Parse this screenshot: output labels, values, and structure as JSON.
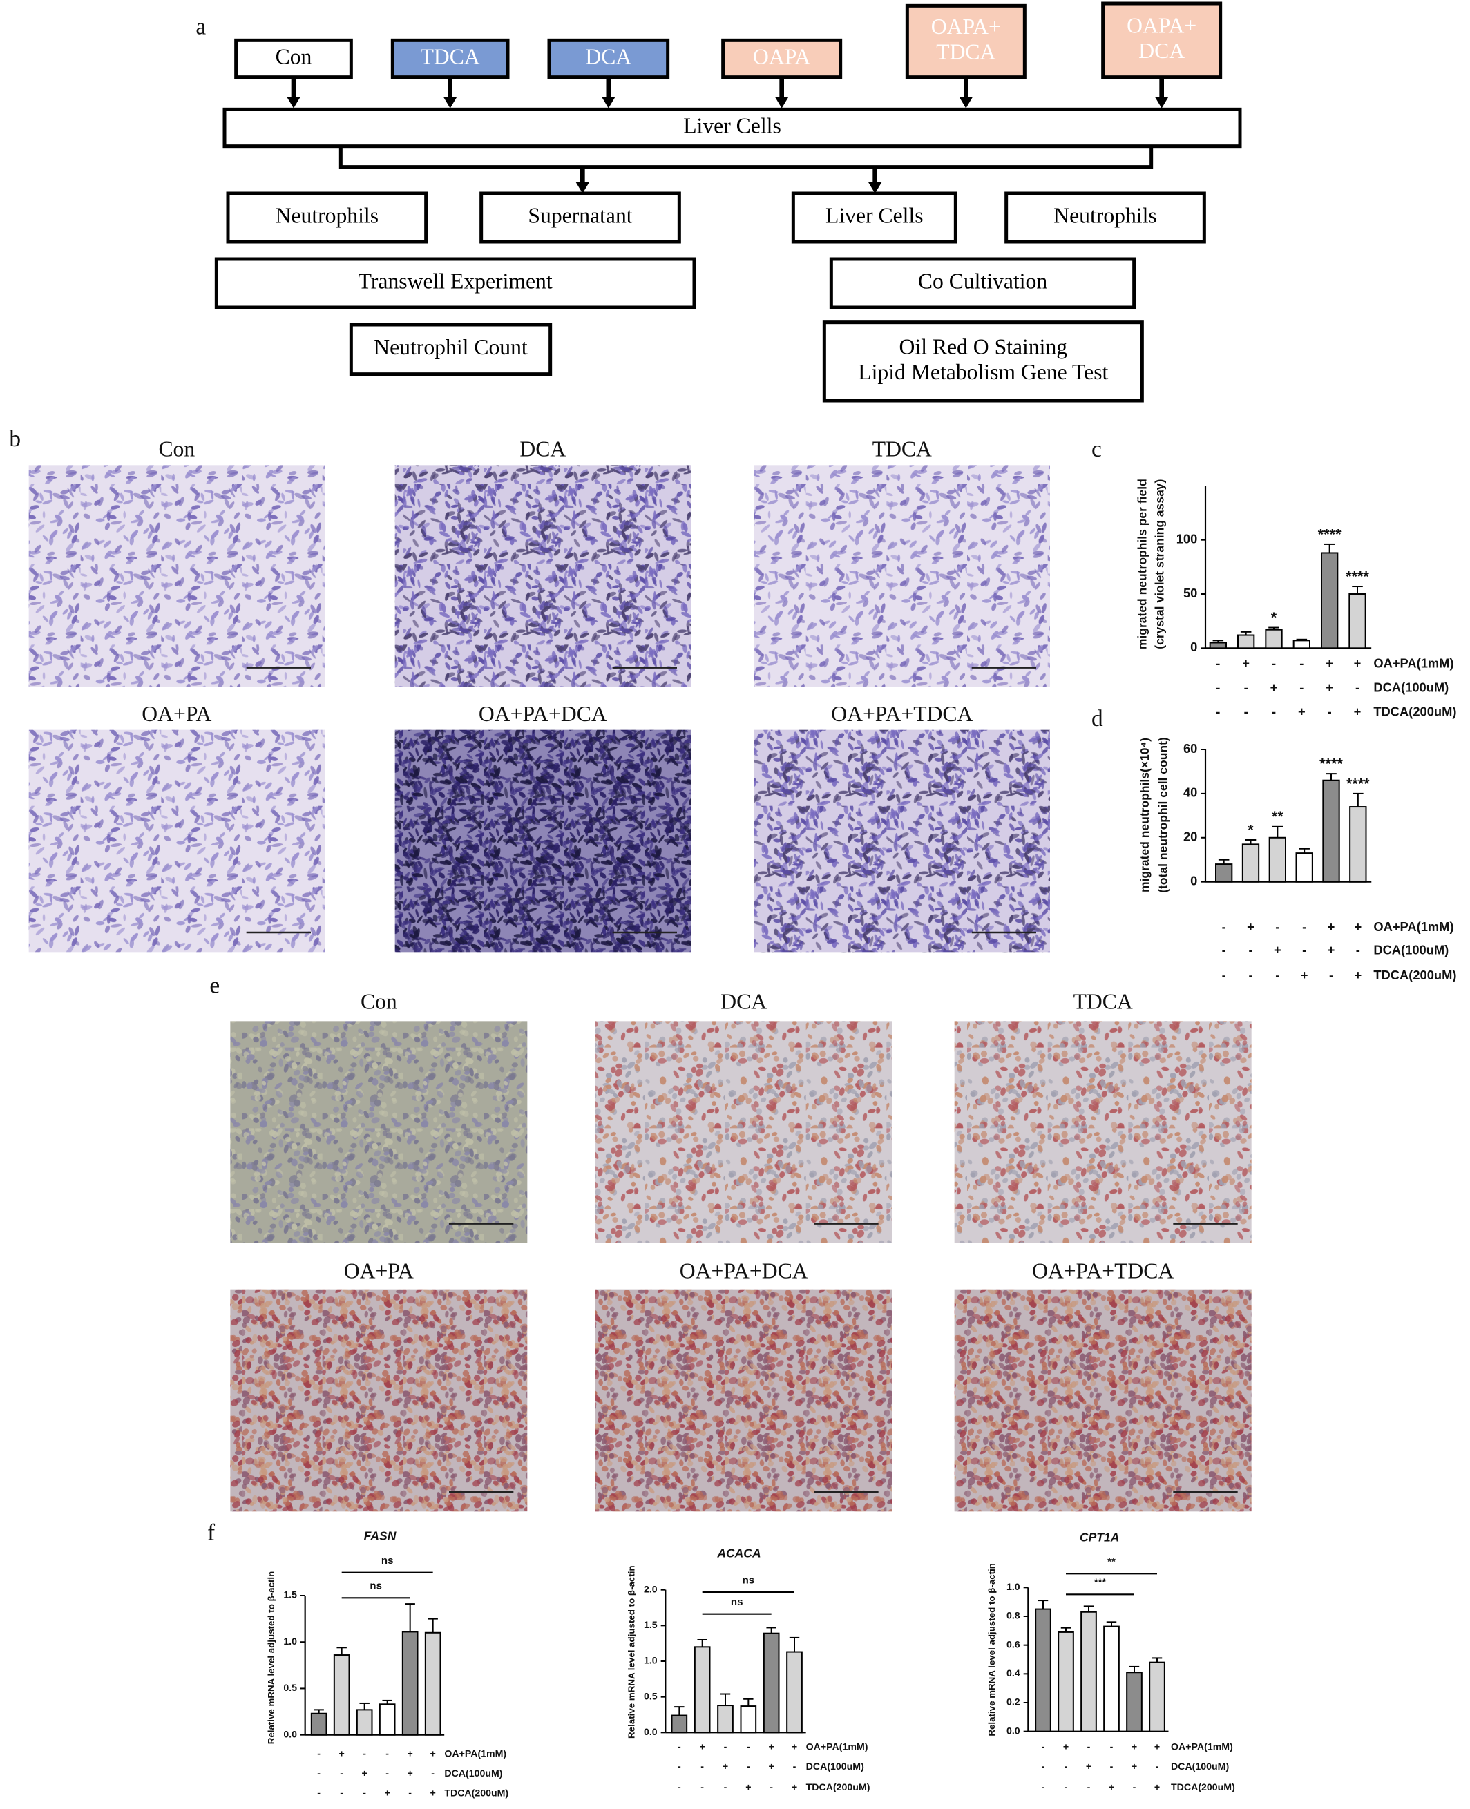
{
  "panel_labels": [
    "a",
    "b",
    "c",
    "d",
    "e",
    "f"
  ],
  "flowchart": {
    "treatments": [
      [
        "Con"
      ],
      [
        "TDCA"
      ],
      [
        "DCA"
      ],
      [
        "OAPA"
      ],
      [
        "OAPA+",
        "TDCA"
      ],
      [
        "OAPA+",
        "DCA"
      ]
    ],
    "liver_cells": "Liver Cells",
    "branches": [
      "Neutrophils",
      "Supernatant",
      "Liver Cells",
      "Neutrophils"
    ],
    "experiments": [
      "Transwell Experiment",
      "Co Cultivation"
    ],
    "readouts": [
      [
        "Neutrophil Count"
      ],
      [
        "Oil Red O Staining",
        "Lipid Metabolism Gene Test"
      ]
    ]
  },
  "images_b": [
    "Con",
    "DCA",
    "TDCA",
    "OA+PA",
    "OA+PA+DCA",
    "OA+PA+TDCA"
  ],
  "images_e": [
    "Con",
    "DCA",
    "TDCA",
    "OA+PA",
    "OA+PA+DCA",
    "OA+PA+TDCA"
  ],
  "chart_data": [
    {
      "type": "bar",
      "y_label": [
        "migrated neutrophils per field",
        "(crystal violet straning assay)"
      ],
      "values": [
        5,
        12,
        17,
        7,
        88,
        50
      ],
      "errors": [
        2,
        3,
        2,
        1,
        8,
        7
      ],
      "annotations": [
        null,
        null,
        "*",
        null,
        "****",
        "****"
      ],
      "colors": [
        "#8c8c8c",
        "#d4d4d4",
        "#d4d4d4",
        "#ffffff",
        "#8c8c8c",
        "#d4d4d4"
      ],
      "ylim": [
        0,
        150
      ],
      "yticks": [
        0,
        50,
        100
      ],
      "conditions": [
        {
          "name": "OA+PA(1mM)",
          "signs": [
            "-",
            "+",
            "-",
            "-",
            "+",
            "+"
          ]
        },
        {
          "name": "DCA(100uM)",
          "signs": [
            "-",
            "-",
            "+",
            "-",
            "+",
            "-"
          ]
        },
        {
          "name": "TDCA(200uM)",
          "signs": [
            "-",
            "-",
            "-",
            "+",
            "-",
            "+"
          ]
        }
      ]
    },
    {
      "type": "bar",
      "y_label": [
        "migrated neutrophils(×10⁴)",
        "(total neutrophil cell count)"
      ],
      "values": [
        8,
        17,
        20,
        13,
        46,
        34
      ],
      "errors": [
        2,
        2,
        5,
        2,
        3,
        6
      ],
      "annotations": [
        null,
        "*",
        "**",
        null,
        "****",
        "****"
      ],
      "colors": [
        "#8c8c8c",
        "#d4d4d4",
        "#d4d4d4",
        "#ffffff",
        "#8c8c8c",
        "#d4d4d4"
      ],
      "ylim": [
        0,
        60
      ],
      "yticks": [
        0,
        20,
        40,
        60
      ],
      "conditions": [
        {
          "name": "OA+PA(1mM)",
          "signs": [
            "-",
            "+",
            "-",
            "-",
            "+",
            "+"
          ]
        },
        {
          "name": "DCA(100uM)",
          "signs": [
            "-",
            "-",
            "+",
            "-",
            "+",
            "-"
          ]
        },
        {
          "name": "TDCA(200uM)",
          "signs": [
            "-",
            "-",
            "-",
            "+",
            "-",
            "+"
          ]
        }
      ]
    },
    {
      "type": "bar",
      "title": "FASN",
      "y_label": [
        "Relative mRNA level adjusted to β-actin"
      ],
      "values": [
        0.23,
        0.86,
        0.27,
        0.33,
        1.11,
        1.1
      ],
      "errors": [
        0.04,
        0.08,
        0.07,
        0.04,
        0.3,
        0.15
      ],
      "colors": [
        "#8c8c8c",
        "#d4d4d4",
        "#d4d4d4",
        "#ffffff",
        "#8c8c8c",
        "#d4d4d4"
      ],
      "brackets": [
        "ns",
        "ns"
      ],
      "ylim": [
        0,
        1.5
      ],
      "yticks": [
        {
          "value": 0,
          "label": "0.0"
        },
        0.5,
        {
          "value": 1,
          "label": "1.0"
        },
        1.5
      ],
      "conditions": [
        {
          "name": "OA+PA(1mM)",
          "signs": [
            "-",
            "+",
            "-",
            "-",
            "+",
            "+"
          ]
        },
        {
          "name": "DCA(100uM)",
          "signs": [
            "-",
            "-",
            "+",
            "-",
            "+",
            "-"
          ]
        },
        {
          "name": "TDCA(200uM)",
          "signs": [
            "-",
            "-",
            "-",
            "+",
            "-",
            "+"
          ]
        }
      ]
    },
    {
      "type": "bar",
      "title": "ACACA",
      "y_label": [
        "Relative mRNA level adjusted to β-actin"
      ],
      "values": [
        0.24,
        1.2,
        0.38,
        0.37,
        1.39,
        1.13
      ],
      "errors": [
        0.12,
        0.1,
        0.16,
        0.1,
        0.08,
        0.2
      ],
      "colors": [
        "#8c8c8c",
        "#d4d4d4",
        "#d4d4d4",
        "#ffffff",
        "#8c8c8c",
        "#d4d4d4"
      ],
      "brackets": [
        "ns",
        "ns"
      ],
      "ylim": [
        0,
        2
      ],
      "yticks": [
        {
          "value": 0,
          "label": "0.0"
        },
        0.5,
        {
          "value": 1,
          "label": "1.0"
        },
        1.5,
        {
          "value": 2,
          "label": "2.0"
        }
      ],
      "conditions": [
        {
          "name": "OA+PA(1mM)",
          "signs": [
            "-",
            "+",
            "-",
            "-",
            "+",
            "+"
          ]
        },
        {
          "name": "DCA(100uM)",
          "signs": [
            "-",
            "-",
            "+",
            "-",
            "+",
            "-"
          ]
        },
        {
          "name": "TDCA(200uM)",
          "signs": [
            "-",
            "-",
            "-",
            "+",
            "-",
            "+"
          ]
        }
      ]
    },
    {
      "type": "bar",
      "title": "CPT1A",
      "y_label": [
        "Relative mRNA level adjusted to β-actin"
      ],
      "values": [
        0.85,
        0.69,
        0.83,
        0.73,
        0.41,
        0.48
      ],
      "errors": [
        0.06,
        0.03,
        0.04,
        0.03,
        0.04,
        0.03
      ],
      "colors": [
        "#8c8c8c",
        "#d4d4d4",
        "#d4d4d4",
        "#ffffff",
        "#8c8c8c",
        "#d4d4d4"
      ],
      "brackets": [
        "***",
        "**"
      ],
      "ylim": [
        0,
        1
      ],
      "yticks": [
        {
          "value": 0,
          "label": "0.0"
        },
        0.2,
        0.4,
        0.6,
        0.8,
        {
          "value": 1,
          "label": "1.0"
        }
      ],
      "conditions": [
        {
          "name": "OA+PA(1mM)",
          "signs": [
            "-",
            "+",
            "-",
            "-",
            "+",
            "+"
          ]
        },
        {
          "name": "DCA(100uM)",
          "signs": [
            "-",
            "-",
            "+",
            "-",
            "+",
            "-"
          ]
        },
        {
          "name": "TDCA(200uM)",
          "signs": [
            "-",
            "-",
            "-",
            "+",
            "-",
            "+"
          ]
        }
      ]
    }
  ]
}
